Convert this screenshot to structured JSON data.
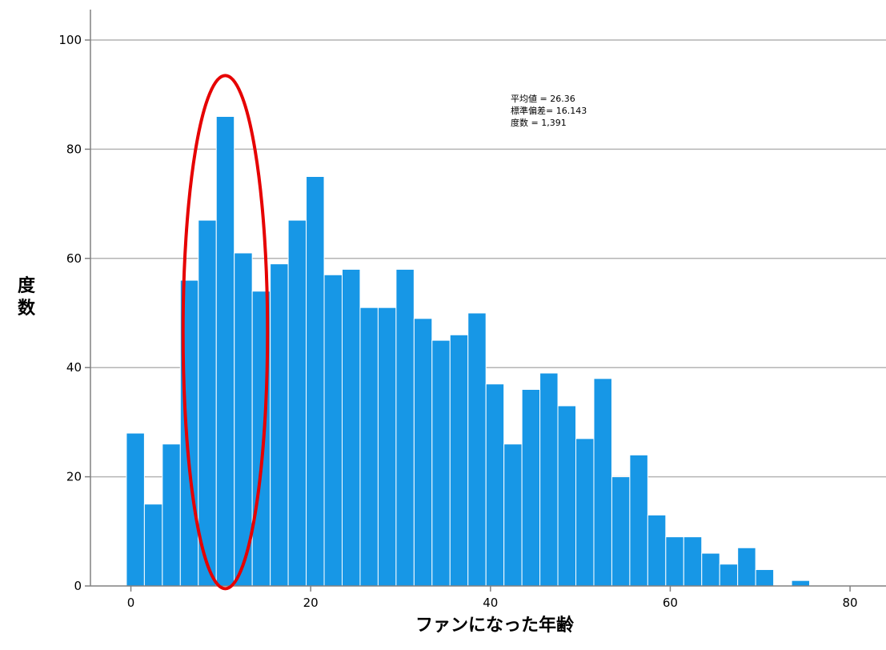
{
  "chart_data": {
    "type": "bar",
    "xlabel": "ファンになった年齢",
    "ylabel": "度数",
    "xlim": [
      -4.5,
      84
    ],
    "ylim": [
      0,
      100
    ],
    "bin_width": 2,
    "x_ticks": [
      0,
      20,
      40,
      60,
      80
    ],
    "y_ticks": [
      0,
      20,
      40,
      60,
      80,
      100
    ],
    "grid": true,
    "bins": [
      {
        "x0": -0.5,
        "x1": 1.5,
        "value": 28
      },
      {
        "x0": 1.5,
        "x1": 3.5,
        "value": 15
      },
      {
        "x0": 3.5,
        "x1": 5.5,
        "value": 26
      },
      {
        "x0": 5.5,
        "x1": 7.5,
        "value": 56
      },
      {
        "x0": 7.5,
        "x1": 9.5,
        "value": 67
      },
      {
        "x0": 9.5,
        "x1": 11.5,
        "value": 86
      },
      {
        "x0": 11.5,
        "x1": 13.5,
        "value": 61
      },
      {
        "x0": 13.5,
        "x1": 15.5,
        "value": 54
      },
      {
        "x0": 15.5,
        "x1": 17.5,
        "value": 59
      },
      {
        "x0": 17.5,
        "x1": 19.5,
        "value": 67
      },
      {
        "x0": 19.5,
        "x1": 21.5,
        "value": 75
      },
      {
        "x0": 21.5,
        "x1": 23.5,
        "value": 57
      },
      {
        "x0": 23.5,
        "x1": 25.5,
        "value": 58
      },
      {
        "x0": 25.5,
        "x1": 27.5,
        "value": 51
      },
      {
        "x0": 27.5,
        "x1": 29.5,
        "value": 51
      },
      {
        "x0": 29.5,
        "x1": 31.5,
        "value": 58
      },
      {
        "x0": 31.5,
        "x1": 33.5,
        "value": 49
      },
      {
        "x0": 33.5,
        "x1": 35.5,
        "value": 45
      },
      {
        "x0": 35.5,
        "x1": 37.5,
        "value": 46
      },
      {
        "x0": 37.5,
        "x1": 39.5,
        "value": 50
      },
      {
        "x0": 39.5,
        "x1": 41.5,
        "value": 37
      },
      {
        "x0": 41.5,
        "x1": 43.5,
        "value": 26
      },
      {
        "x0": 43.5,
        "x1": 45.5,
        "value": 36
      },
      {
        "x0": 45.5,
        "x1": 47.5,
        "value": 39
      },
      {
        "x0": 47.5,
        "x1": 49.5,
        "value": 33
      },
      {
        "x0": 49.5,
        "x1": 51.5,
        "value": 27
      },
      {
        "x0": 51.5,
        "x1": 53.5,
        "value": 38
      },
      {
        "x0": 53.5,
        "x1": 55.5,
        "value": 20
      },
      {
        "x0": 55.5,
        "x1": 57.5,
        "value": 24
      },
      {
        "x0": 57.5,
        "x1": 59.5,
        "value": 13
      },
      {
        "x0": 59.5,
        "x1": 61.5,
        "value": 9
      },
      {
        "x0": 61.5,
        "x1": 63.5,
        "value": 9
      },
      {
        "x0": 63.5,
        "x1": 65.5,
        "value": 6
      },
      {
        "x0": 65.5,
        "x1": 67.5,
        "value": 4
      },
      {
        "x0": 67.5,
        "x1": 69.5,
        "value": 7
      },
      {
        "x0": 69.5,
        "x1": 71.5,
        "value": 3
      },
      {
        "x0": 73.5,
        "x1": 75.5,
        "value": 1
      }
    ],
    "statistics": [
      "平均値 = 26.36",
      "標準偏差= 16.143",
      "度数 = 1,391"
    ],
    "annotation": {
      "shape": "ellipse",
      "x_center": 10.5,
      "y_center": 46.5,
      "x_radius": 4.7,
      "y_radius": 47
    },
    "colors": {
      "bar_fill": "#1797e6",
      "bar_edge": "#ffffff",
      "grid": "#b4b4b4",
      "axis": "#808080",
      "annotation": "#e60000"
    }
  }
}
